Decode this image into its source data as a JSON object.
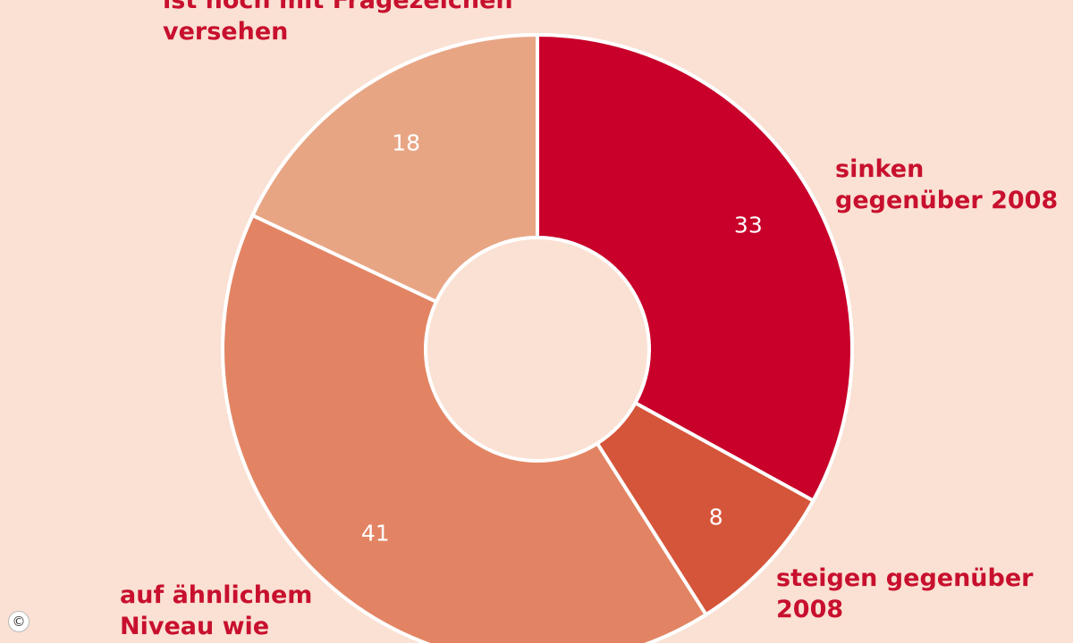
{
  "chart_data": {
    "type": "donut",
    "slices": [
      {
        "value": 33,
        "label_lines": [
          "sinken",
          "gegenüber 2008"
        ],
        "color": "#c8002a"
      },
      {
        "value": 8,
        "label_lines": [
          "steigen gegenüber",
          "2008"
        ],
        "color": "#d5553a"
      },
      {
        "value": 41,
        "label_lines": [
          "auf ähnlichem",
          "Niveau wie"
        ],
        "color": "#e28463"
      },
      {
        "value": 18,
        "label_lines": [
          "ist noch mit Fragezeichen",
          "versehen"
        ],
        "color": "#e8a584"
      }
    ],
    "label_color": "#c8102e",
    "background": "#fae1d3"
  },
  "copyright_symbol": "©"
}
